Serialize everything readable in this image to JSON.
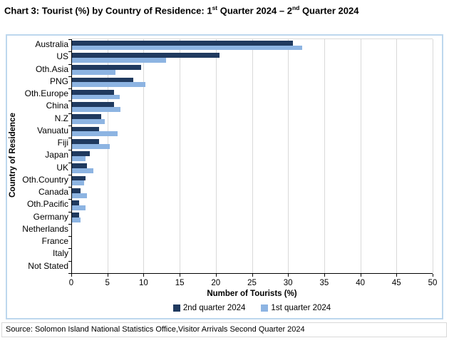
{
  "title": {
    "parts": [
      "Chart 3: Tourist (%) by Country of Residence: 1",
      "st",
      " Quarter 2024 – 2",
      "nd",
      " Quarter 2024"
    ]
  },
  "chart_data": {
    "type": "bar",
    "orientation": "horizontal",
    "title": "Chart 3: Tourist (%) by Country of Residence: 1st Quarter 2024 – 2nd Quarter 2024",
    "xlabel": "Number of Tourists (%)",
    "ylabel": "Country of Residence",
    "xlim": [
      0,
      50
    ],
    "xticks": [
      0,
      5,
      10,
      15,
      20,
      25,
      30,
      35,
      40,
      45,
      50
    ],
    "grid": true,
    "legend_position": "bottom",
    "categories": [
      "Australia",
      "US",
      "Oth.Asia",
      "PNG",
      "Oth.Europe",
      "China",
      "N.Z",
      "Vanuatu",
      "Fiji",
      "Japan",
      "UK",
      "Oth.Country",
      "Canada",
      "Oth.Pacific",
      "Germany",
      "Netherlands",
      "France",
      "Italy",
      "Not Stated"
    ],
    "series": [
      {
        "name": "2nd quarter 2024",
        "color": "#203a5f",
        "values": [
          30.6,
          20.4,
          9.6,
          8.5,
          5.8,
          5.8,
          4.0,
          3.7,
          3.7,
          2.5,
          2.1,
          1.9,
          1.2,
          1.0,
          1.0,
          0,
          0,
          0,
          0
        ]
      },
      {
        "name": "1st quarter 2024",
        "color": "#8db4e2",
        "values": [
          31.9,
          13.0,
          6.0,
          10.2,
          6.6,
          6.7,
          4.5,
          6.3,
          5.2,
          1.9,
          3.0,
          1.7,
          2.1,
          1.9,
          1.2,
          0,
          0,
          0,
          0
        ]
      }
    ]
  },
  "colors": {
    "frame_border": "#bdd7ee",
    "gridline": "#d9d9d9",
    "axis": "#000000"
  },
  "source": "Source: Solomon Island National Statistics Office,Visitor Arrivals Second Quarter 2024"
}
